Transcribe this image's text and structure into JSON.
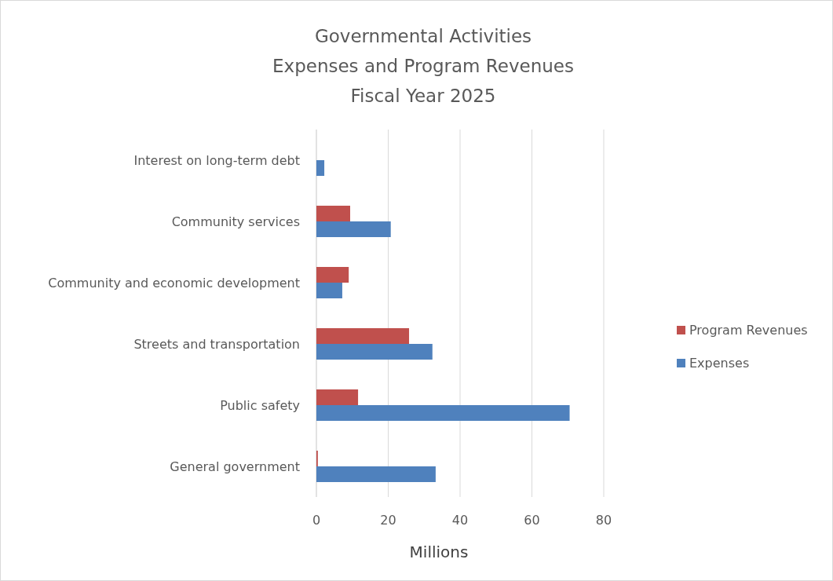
{
  "chart_data": {
    "type": "bar",
    "orientation": "horizontal",
    "title": "Governmental Activities\nExpenses and Program Revenues\nFiscal Year 2025",
    "xlabel": "Millions",
    "categories": [
      "Interest on long-term debt",
      "Community services",
      "Community and economic development",
      "Streets and transportation",
      "Public safety",
      "General government"
    ],
    "series": [
      {
        "name": "Program Revenues",
        "color": "#c0504d",
        "values": [
          0,
          9.4,
          9.0,
          25.8,
          11.6,
          0.4
        ]
      },
      {
        "name": "Expenses",
        "color": "#4f81bd",
        "values": [
          2.2,
          20.7,
          7.2,
          32.3,
          70.5,
          33.2
        ]
      }
    ],
    "xlim": [
      0,
      80
    ],
    "xticks": [
      0,
      20,
      40,
      60,
      80
    ],
    "grid": "x",
    "legend": "right"
  }
}
